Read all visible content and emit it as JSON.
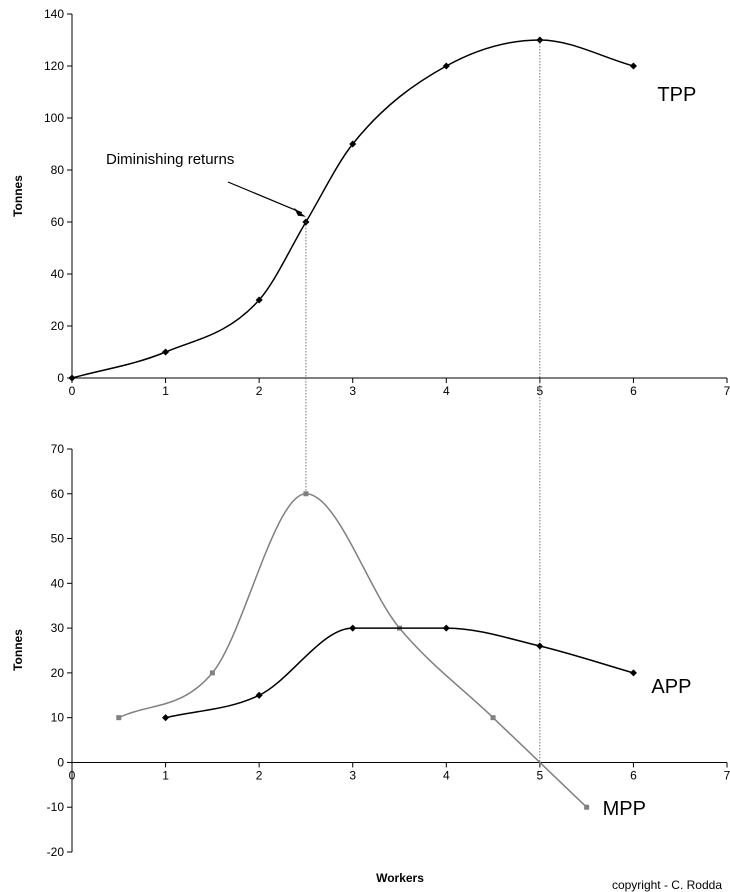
{
  "chart_data": [
    {
      "type": "line",
      "ylabel": "Tonnes",
      "xlim": [
        0,
        7
      ],
      "ylim": [
        0,
        140
      ],
      "x_ticks": [
        "0",
        "1",
        "2",
        "3",
        "4",
        "5",
        "6",
        "7"
      ],
      "y_ticks": [
        "0",
        "20",
        "40",
        "60",
        "80",
        "100",
        "120",
        "140"
      ],
      "series": [
        {
          "name": "TPP",
          "color": "#000000",
          "x": [
            0,
            1,
            2,
            2.5,
            3,
            4,
            5,
            6
          ],
          "y": [
            0,
            10,
            30,
            60,
            90,
            120,
            130,
            120
          ]
        }
      ],
      "annotation": {
        "text": "Diminishing returns",
        "x": 2.5,
        "y": 62
      },
      "reference_x": [
        2.5,
        5
      ],
      "grid": false
    },
    {
      "type": "line",
      "xlabel": "Workers",
      "ylabel": "Tonnes",
      "xlim": [
        0,
        7
      ],
      "ylim": [
        -20,
        70
      ],
      "x_ticks": [
        "0",
        "1",
        "2",
        "3",
        "4",
        "5",
        "6",
        "7"
      ],
      "y_ticks": [
        "-20",
        "-10",
        "0",
        "10",
        "20",
        "30",
        "40",
        "50",
        "60",
        "70"
      ],
      "series": [
        {
          "name": "MPP",
          "color": "#808080",
          "x": [
            0.5,
            1.5,
            2.5,
            3.5,
            4.5,
            5.5
          ],
          "y": [
            10,
            20,
            60,
            30,
            10,
            -10
          ]
        },
        {
          "name": "APP",
          "color": "#000000",
          "x": [
            1,
            2,
            3,
            4,
            5,
            6
          ],
          "y": [
            10,
            15,
            30,
            30,
            26,
            20
          ]
        }
      ],
      "reference_x": [
        2.5,
        5
      ],
      "grid": false
    }
  ],
  "copyright": "copyright - C. Rodda"
}
